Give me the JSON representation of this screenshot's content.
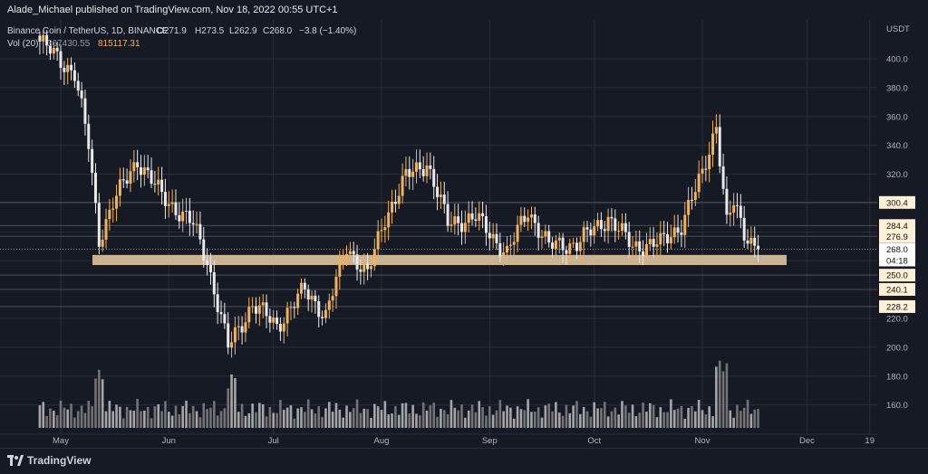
{
  "header": {
    "publisher_line": "Alade_Michael published on TradingView.com, Nov 18, 2022 00:55 UTC+1"
  },
  "legend": {
    "symbol": "Binance Coin / TetherUS, 1D, BINANCE",
    "open": "O271.9",
    "high": "H273.5",
    "low": "L262.9",
    "close": "C268.0",
    "change": "−3.8 (−1.40%)",
    "volume_label": "Vol (20)",
    "volume_ma": "367430.55",
    "volume_value": "815117.31"
  },
  "footer": {
    "brand": "TradingView"
  },
  "colors": {
    "up": "#f0b35a",
    "down": "#e9e9e9",
    "support_zone": "#c9b391",
    "volume_up": "#c9c9c9",
    "volume_down": "#8a8a8a",
    "grid": "#2a2e39",
    "level_line": "#4a4e59"
  },
  "chart_data": {
    "type": "candlestick",
    "title": "Binance Coin / TetherUS, 1D, BINANCE",
    "currency": "USDT",
    "ylim": [
      140,
      412
    ],
    "y_ticks": [
      160,
      180,
      200,
      220,
      240,
      260,
      280,
      300,
      320,
      340,
      360,
      380,
      400
    ],
    "x_ticks": [
      "May",
      "Jun",
      "Jul",
      "Aug",
      "Sep",
      "Oct",
      "Nov",
      "Dec",
      "19"
    ],
    "price_labels": [
      {
        "text": "USDT",
        "value": null
      },
      {
        "text": "300.4",
        "value": 300.4
      },
      {
        "text": "284.4",
        "value": 284.4
      },
      {
        "text": "276.9",
        "value": 276.9
      },
      {
        "text": "268.0",
        "value": 268.0
      },
      {
        "text": "04:18",
        "value": null
      },
      {
        "text": "250.0",
        "value": 250.0
      },
      {
        "text": "240.1",
        "value": 240.1
      },
      {
        "text": "228.2",
        "value": 228.2
      }
    ],
    "horizontal_levels": [
      300.4,
      284.4,
      276.9,
      250.0,
      240.1,
      228.2
    ],
    "support_zone": {
      "low": 257,
      "high": 264
    },
    "last_price": 268.0,
    "ohlc_anchor_closes": [
      {
        "date": "2022-04-25",
        "close": 412
      },
      {
        "date": "2022-05-05",
        "close": 390
      },
      {
        "date": "2022-05-09",
        "close": 340
      },
      {
        "date": "2022-05-12",
        "close": 275
      },
      {
        "date": "2022-05-16",
        "close": 300
      },
      {
        "date": "2022-05-23",
        "close": 330
      },
      {
        "date": "2022-05-30",
        "close": 305
      },
      {
        "date": "2022-06-08",
        "close": 285
      },
      {
        "date": "2022-06-12",
        "close": 260
      },
      {
        "date": "2022-06-18",
        "close": 200
      },
      {
        "date": "2022-06-25",
        "close": 230
      },
      {
        "date": "2022-07-02",
        "close": 215
      },
      {
        "date": "2022-07-10",
        "close": 240
      },
      {
        "date": "2022-07-16",
        "close": 222
      },
      {
        "date": "2022-07-22",
        "close": 270
      },
      {
        "date": "2022-07-28",
        "close": 250
      },
      {
        "date": "2022-08-02",
        "close": 290
      },
      {
        "date": "2022-08-08",
        "close": 318
      },
      {
        "date": "2022-08-14",
        "close": 328
      },
      {
        "date": "2022-08-20",
        "close": 286
      },
      {
        "date": "2022-08-28",
        "close": 290
      },
      {
        "date": "2022-09-06",
        "close": 265
      },
      {
        "date": "2022-09-12",
        "close": 295
      },
      {
        "date": "2022-09-18",
        "close": 270
      },
      {
        "date": "2022-09-26",
        "close": 272
      },
      {
        "date": "2022-10-05",
        "close": 290
      },
      {
        "date": "2022-10-12",
        "close": 270
      },
      {
        "date": "2022-10-20",
        "close": 272
      },
      {
        "date": "2022-10-26",
        "close": 285
      },
      {
        "date": "2022-11-01",
        "close": 320
      },
      {
        "date": "2022-11-05",
        "close": 355
      },
      {
        "date": "2022-11-08",
        "close": 285
      },
      {
        "date": "2022-11-10",
        "close": 300
      },
      {
        "date": "2022-11-13",
        "close": 280
      },
      {
        "date": "2022-11-17",
        "close": 268
      }
    ],
    "volume_ma_label": "367430.55",
    "volume_last": "815117.31",
    "grid": true,
    "legend_position": "top-left"
  }
}
